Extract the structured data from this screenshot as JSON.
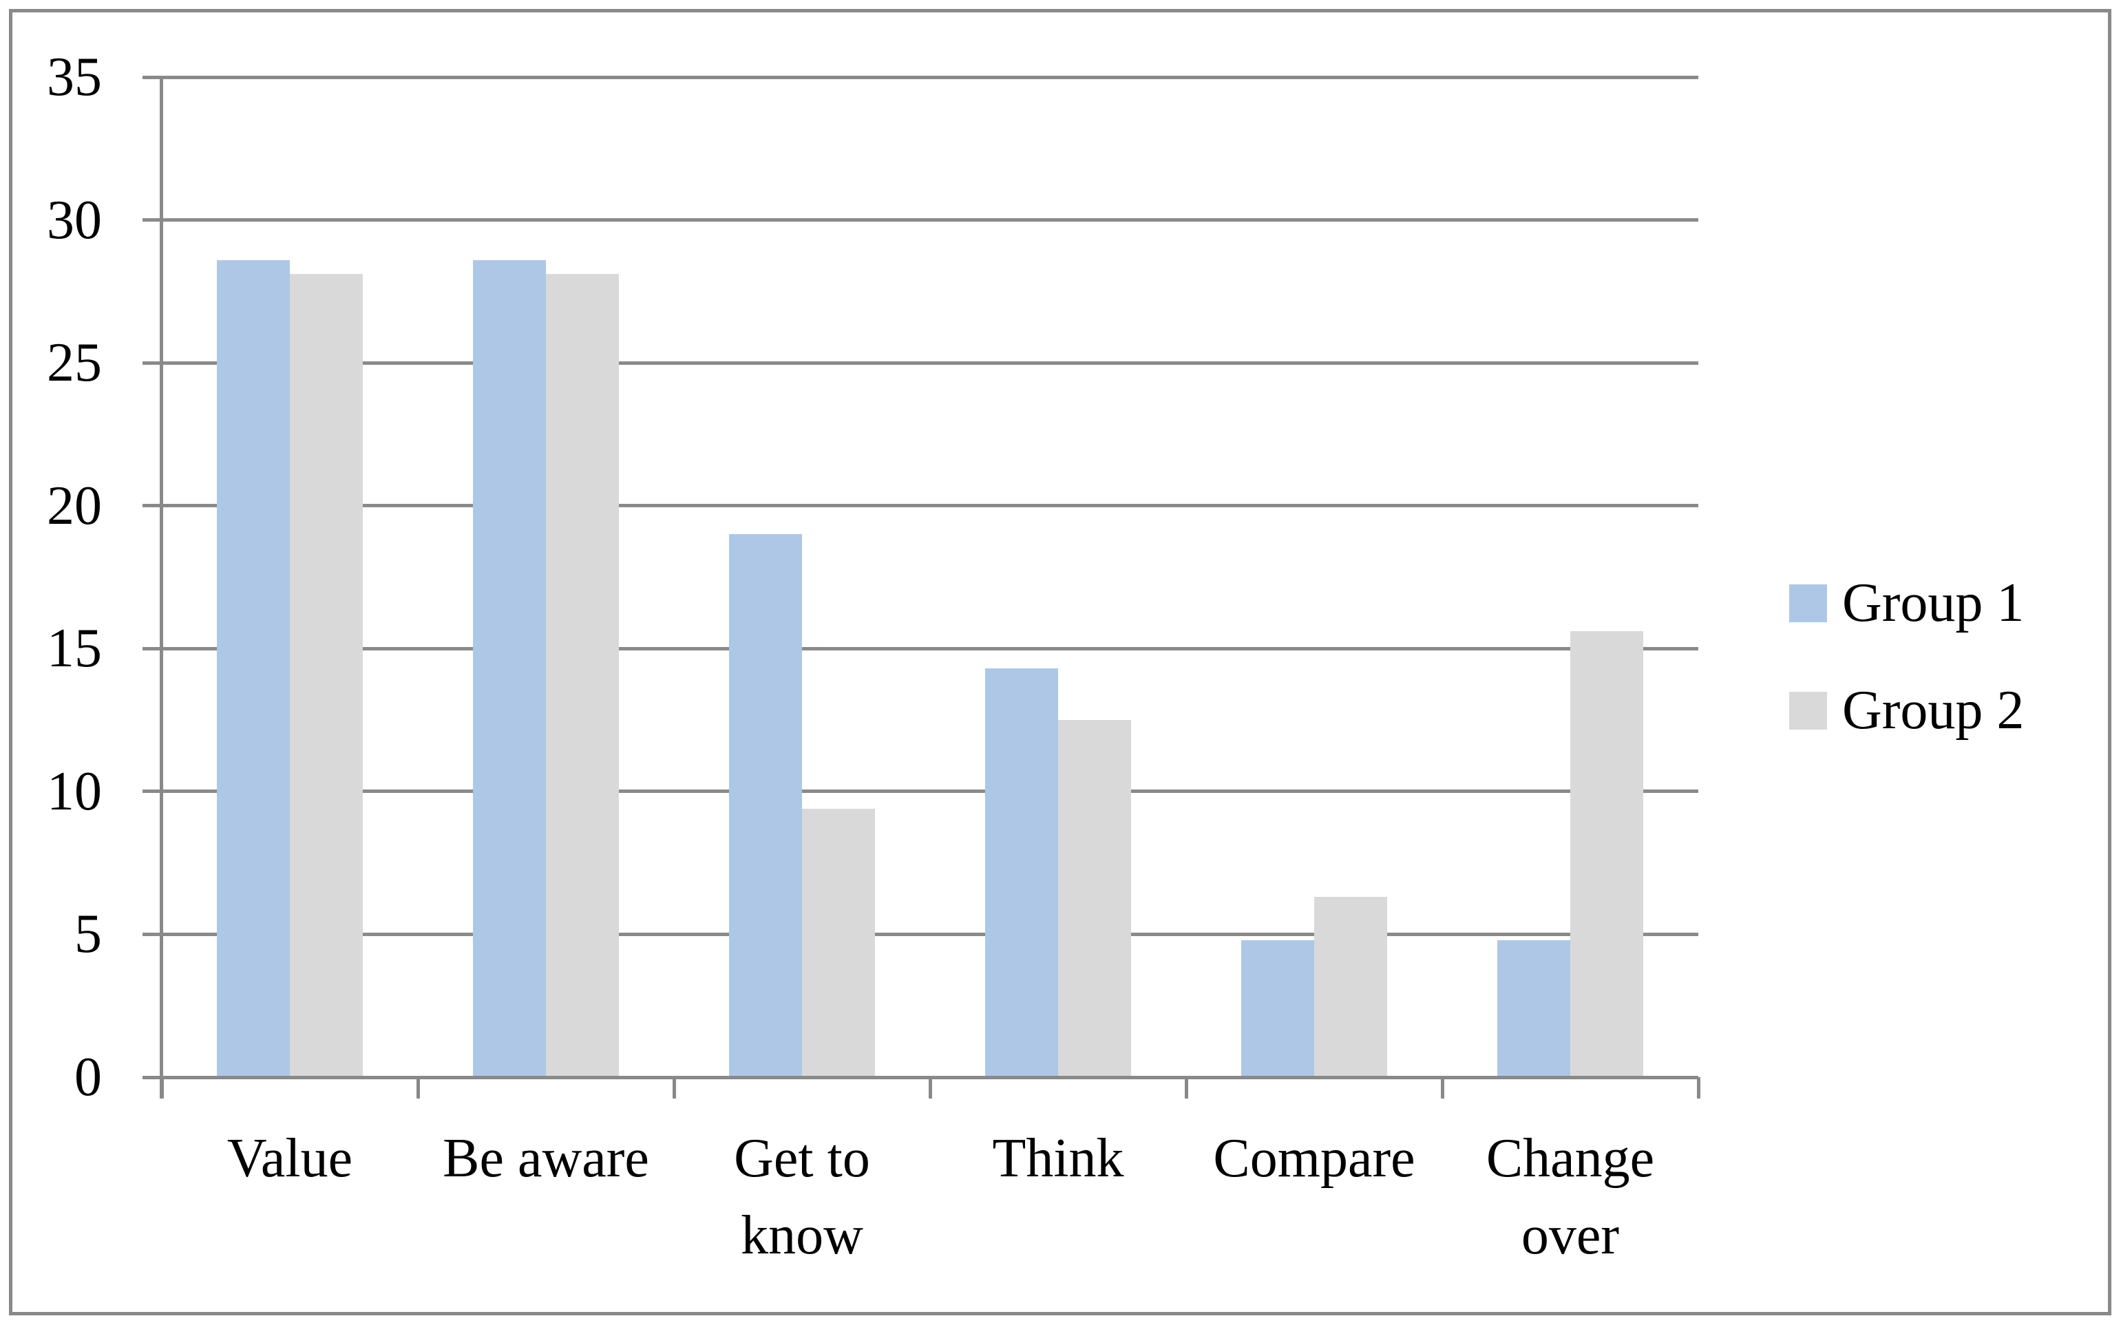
{
  "chart_data": {
    "type": "bar",
    "title": "",
    "xlabel": "",
    "ylabel": "",
    "categories": [
      "Value",
      "Be aware",
      "Get to know",
      "Think",
      "Compare",
      "Change over"
    ],
    "series": [
      {
        "name": "Group 1",
        "color": "#aec7e6",
        "values": [
          28.6,
          28.6,
          19.0,
          14.3,
          4.8,
          4.8
        ]
      },
      {
        "name": "Group 2",
        "color": "#d9d9d9",
        "values": [
          28.1,
          28.1,
          9.4,
          12.5,
          6.3,
          15.6
        ]
      }
    ],
    "ylim": [
      0,
      35
    ],
    "yticks": [
      0,
      5,
      10,
      15,
      20,
      25,
      30,
      35
    ],
    "grid": true,
    "grid_color": "#8a8a8a",
    "axis_color": "#898989",
    "legend_position": "right"
  }
}
